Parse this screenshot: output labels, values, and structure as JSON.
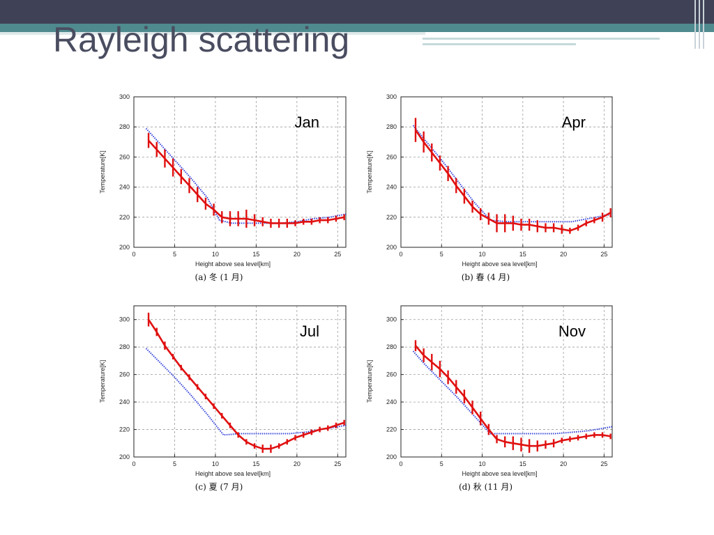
{
  "slide": {
    "title": "Rayleigh scattering"
  },
  "chart_data": [
    {
      "type": "line",
      "panel_label": "Jan",
      "caption": "(a) 冬 (1 月)",
      "xlabel": "Height above sea level[km]",
      "ylabel": "Temperature[K]",
      "xlim": [
        0,
        26
      ],
      "ylim": [
        200,
        300
      ],
      "xticks": [
        0,
        5,
        10,
        15,
        20,
        25
      ],
      "yticks": [
        200,
        220,
        240,
        260,
        280,
        300
      ],
      "grid": true,
      "series": [
        {
          "style": "model",
          "color": "#2f3fd9",
          "x": [
            1.5,
            3,
            5,
            7,
            9,
            10.5,
            12,
            14,
            16,
            18,
            20,
            22,
            24,
            26
          ],
          "y": [
            279,
            270,
            258,
            246,
            233,
            218,
            216,
            216,
            216,
            216,
            217,
            219,
            220,
            222
          ]
        },
        {
          "style": "measured",
          "color": "#e01010",
          "x": [
            1.8,
            2.8,
            3.8,
            4.8,
            5.8,
            6.8,
            7.8,
            8.8,
            9.8,
            10.8,
            11.8,
            12.8,
            13.8,
            14.8,
            15.8,
            16.8,
            17.8,
            18.8,
            19.8,
            20.8,
            21.8,
            22.8,
            23.8,
            24.8,
            25.8
          ],
          "y": [
            271,
            265,
            259,
            253,
            247,
            241,
            235,
            229,
            225,
            220,
            219,
            219,
            219,
            218,
            217,
            216,
            216,
            216,
            216,
            217,
            217,
            218,
            218,
            219,
            220
          ],
          "err": [
            5,
            5,
            6,
            6,
            5,
            5,
            5,
            4,
            4,
            4,
            5,
            5,
            6,
            4,
            3,
            3,
            3,
            3,
            2,
            2,
            2,
            2,
            2,
            2,
            2
          ]
        }
      ]
    },
    {
      "type": "line",
      "panel_label": "Apr",
      "caption": "(b) 春 (4 月)",
      "xlabel": "Height above sea level[km]",
      "ylabel": "Temperature[K]",
      "xlim": [
        0,
        26
      ],
      "ylim": [
        200,
        300
      ],
      "xticks": [
        0,
        5,
        10,
        15,
        20,
        25
      ],
      "yticks": [
        200,
        220,
        240,
        260,
        280,
        300
      ],
      "grid": true,
      "series": [
        {
          "style": "model",
          "color": "#2f3fd9",
          "x": [
            1.5,
            3,
            5,
            7,
            9,
            11,
            13,
            15,
            17,
            19,
            21,
            23,
            25,
            26
          ],
          "y": [
            281,
            271,
            258,
            244,
            230,
            218,
            217,
            217,
            217,
            217,
            217,
            219,
            221,
            222
          ]
        },
        {
          "style": "measured",
          "color": "#e01010",
          "x": [
            1.8,
            2.8,
            3.8,
            4.8,
            5.8,
            6.8,
            7.8,
            8.8,
            9.8,
            10.8,
            11.8,
            12.8,
            13.8,
            14.8,
            15.8,
            16.8,
            17.8,
            18.8,
            19.8,
            20.8,
            21.8,
            22.8,
            23.8,
            24.8,
            25.8
          ],
          "y": [
            278,
            270,
            263,
            256,
            249,
            241,
            234,
            227,
            222,
            219,
            216,
            216,
            216,
            215,
            215,
            214,
            213,
            213,
            212,
            211,
            213,
            216,
            218,
            220,
            223
          ],
          "err": [
            8,
            7,
            6,
            5,
            5,
            5,
            5,
            4,
            4,
            4,
            6,
            6,
            5,
            4,
            4,
            4,
            3,
            3,
            3,
            2,
            2,
            2,
            2,
            3,
            3
          ]
        }
      ]
    },
    {
      "type": "line",
      "panel_label": "Jul",
      "caption": "(c) 夏 (7 月)",
      "xlabel": "Height above sea level[km]",
      "ylabel": "Temperature[K]",
      "xlim": [
        0,
        26
      ],
      "ylim": [
        200,
        310
      ],
      "xticks": [
        0,
        5,
        10,
        15,
        20,
        25
      ],
      "yticks": [
        200,
        220,
        240,
        260,
        280,
        300
      ],
      "grid": true,
      "series": [
        {
          "style": "model",
          "color": "#2f3fd9",
          "x": [
            1.5,
            3,
            5,
            7,
            9,
            11,
            13,
            15,
            17,
            19,
            21,
            23,
            25,
            26
          ],
          "y": [
            279,
            270,
            258,
            245,
            231,
            216,
            217,
            217,
            217,
            217,
            218,
            220,
            222,
            223
          ]
        },
        {
          "style": "measured",
          "color": "#e01010",
          "x": [
            1.8,
            2.8,
            3.8,
            4.8,
            5.8,
            6.8,
            7.8,
            8.8,
            9.8,
            10.8,
            11.8,
            12.8,
            13.8,
            14.8,
            15.8,
            16.8,
            17.8,
            18.8,
            19.8,
            20.8,
            21.8,
            22.8,
            23.8,
            24.8,
            25.8
          ],
          "y": [
            300,
            291,
            281,
            273,
            265,
            258,
            251,
            244,
            237,
            230,
            223,
            216,
            211,
            208,
            206,
            206,
            208,
            211,
            214,
            216,
            218,
            220,
            221,
            223,
            225
          ],
          "err": [
            5,
            3,
            3,
            2,
            2,
            2,
            2,
            2,
            2,
            2,
            2,
            2,
            2,
            2,
            3,
            3,
            2,
            2,
            2,
            2,
            2,
            2,
            2,
            2,
            2
          ]
        }
      ]
    },
    {
      "type": "line",
      "panel_label": "Nov",
      "caption": "(d) 秋 (11 月)",
      "xlabel": "Height above sea level[km]",
      "ylabel": "Temperature[K]",
      "xlim": [
        0,
        26
      ],
      "ylim": [
        200,
        310
      ],
      "xticks": [
        0,
        5,
        10,
        15,
        20,
        25
      ],
      "yticks": [
        200,
        220,
        240,
        260,
        280,
        300
      ],
      "grid": true,
      "series": [
        {
          "style": "model",
          "color": "#2f3fd9",
          "x": [
            1.5,
            3,
            5,
            7,
            9,
            11,
            13,
            15,
            17,
            19,
            21,
            23,
            25,
            26
          ],
          "y": [
            277,
            267,
            255,
            243,
            230,
            217,
            217,
            217,
            217,
            217,
            218,
            219,
            221,
            222
          ]
        },
        {
          "style": "measured",
          "color": "#e01010",
          "x": [
            1.8,
            2.8,
            3.8,
            4.8,
            5.8,
            6.8,
            7.8,
            8.8,
            9.8,
            10.8,
            11.8,
            12.8,
            13.8,
            14.8,
            15.8,
            16.8,
            17.8,
            18.8,
            19.8,
            20.8,
            21.8,
            22.8,
            23.8,
            24.8,
            25.8
          ],
          "y": [
            281,
            274,
            269,
            264,
            258,
            251,
            244,
            236,
            228,
            220,
            213,
            211,
            210,
            209,
            208,
            208,
            209,
            210,
            212,
            213,
            214,
            215,
            216,
            216,
            215
          ],
          "err": [
            4,
            5,
            6,
            6,
            5,
            5,
            5,
            5,
            5,
            4,
            3,
            4,
            5,
            5,
            5,
            4,
            3,
            3,
            2,
            2,
            2,
            2,
            2,
            2,
            2
          ]
        }
      ]
    }
  ]
}
